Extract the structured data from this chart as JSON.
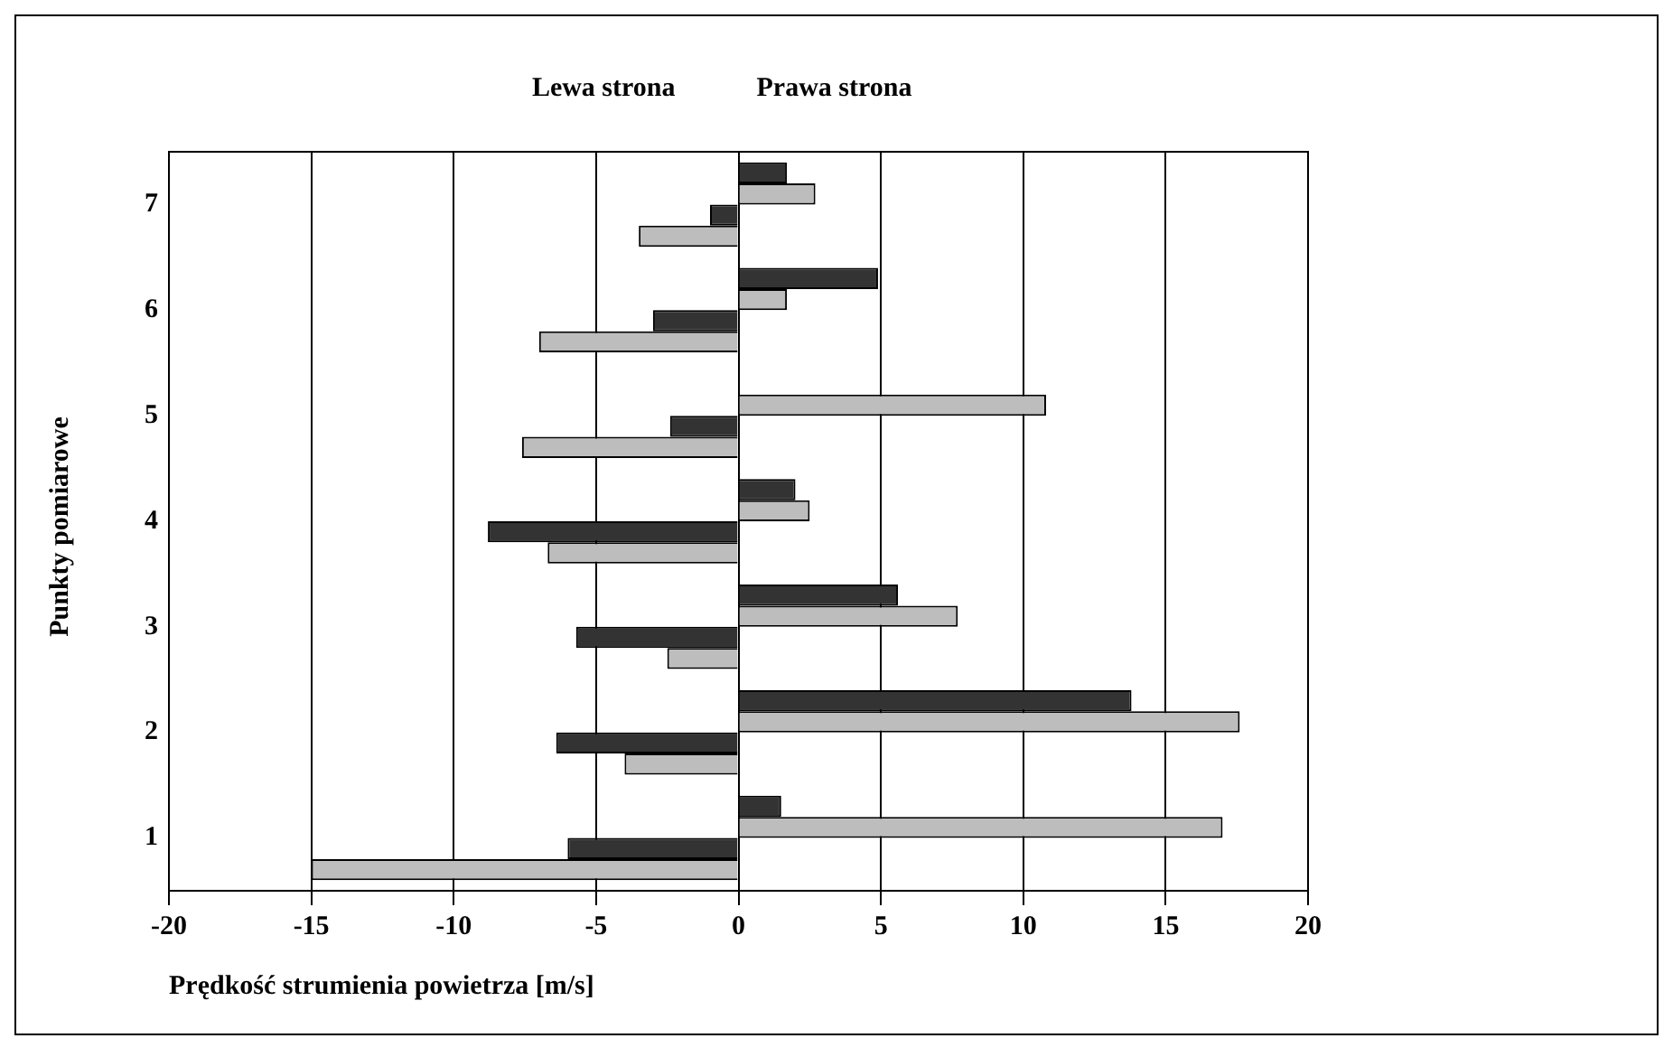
{
  "chart_data": {
    "type": "bar",
    "orientation": "horizontal",
    "xlabel": "Prędkość strumienia powietrza [m/s]",
    "ylabel": "Punkty pomiarowe",
    "annotations": [
      "Lewa strona",
      "Prawa strona"
    ],
    "categories": [
      "7",
      "6",
      "5",
      "4",
      "3",
      "2",
      "1"
    ],
    "series": [
      {
        "color": "#333333",
        "values": [
          1.7,
          4.9,
          null,
          2.0,
          5.6,
          13.8,
          1.5
        ]
      },
      {
        "color": "#bdbdbd",
        "values": [
          2.7,
          1.7,
          10.8,
          2.5,
          7.7,
          17.6,
          17.0
        ]
      },
      {
        "color": "#333333",
        "values": [
          -1.0,
          -3.0,
          -2.4,
          -8.8,
          -5.7,
          -6.4,
          -6.0
        ]
      },
      {
        "color": "#bdbdbd",
        "values": [
          -3.5,
          -7.0,
          -7.6,
          -6.7,
          -2.5,
          -4.0,
          -15.0
        ]
      }
    ],
    "xlim": [
      -20,
      20
    ],
    "xticks": [
      -20,
      -15,
      -10,
      -5,
      0,
      5,
      10,
      15,
      20
    ],
    "grid": "x",
    "legend": false
  }
}
